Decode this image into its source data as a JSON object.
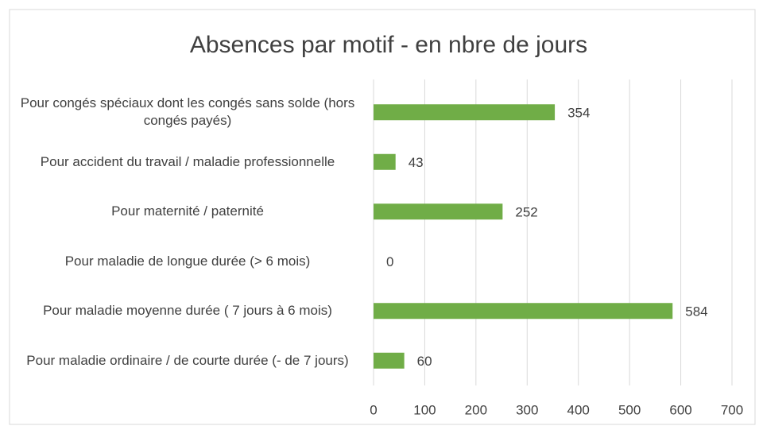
{
  "chart_data": {
    "type": "bar",
    "orientation": "horizontal",
    "title": "Absences par motif - en nbre de jours",
    "categories": [
      "Pour congés spéciaux dont les congés sans solde (hors congés payés)",
      "Pour accident du travail / maladie professionnelle",
      "Pour maternité / paternité",
      "Pour maladie de longue durée (> 6 mois)",
      "Pour maladie moyenne durée ( 7 jours à 6 mois)",
      "Pour maladie ordinaire / de courte durée (- de 7 jours)"
    ],
    "values": [
      354,
      43,
      252,
      0,
      584,
      60
    ],
    "color": "#70ad47",
    "xlim": [
      0,
      700
    ],
    "xticks": [
      0,
      100,
      200,
      300,
      400,
      500,
      600,
      700
    ],
    "grid": true
  }
}
